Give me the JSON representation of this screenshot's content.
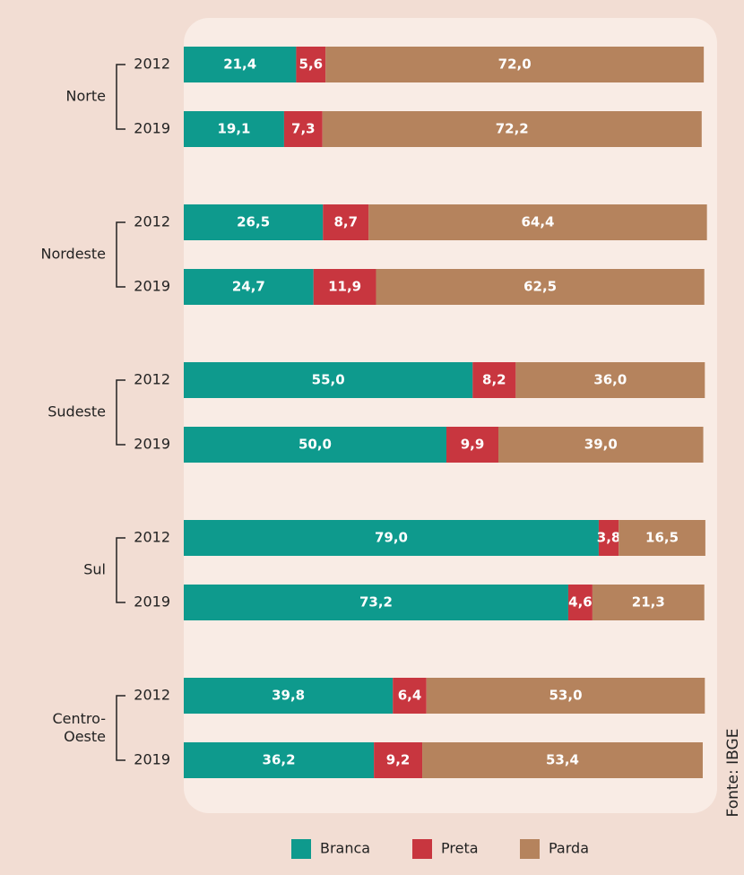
{
  "chart_data": {
    "type": "stacked-bar-horizontal",
    "groups": [
      "Norte",
      "Nordeste",
      "Sudeste",
      "Sul",
      "Centro-Oeste"
    ],
    "categories": [
      "2012",
      "2019",
      "2012",
      "2019",
      "2012",
      "2019",
      "2012",
      "2019",
      "2012",
      "2019"
    ],
    "xlim": [
      0,
      100
    ],
    "series": [
      {
        "name": "Branca",
        "color": "#0e9a8d",
        "values": [
          21.4,
          19.1,
          26.5,
          24.7,
          55.0,
          50.0,
          79.0,
          73.2,
          39.8,
          36.2
        ],
        "value_labels": [
          "21,4",
          "19,1",
          "26,5",
          "24,7",
          "55,0",
          "50,0",
          "79,0",
          "73,2",
          "39,8",
          "36,2"
        ]
      },
      {
        "name": "Preta",
        "color": "#c8363f",
        "values": [
          5.6,
          7.3,
          8.7,
          11.9,
          8.2,
          9.9,
          3.8,
          4.6,
          6.4,
          9.2
        ],
        "value_labels": [
          "5,6",
          "7,3",
          "8,7",
          "11,9",
          "8,2",
          "9,9",
          "3,8",
          "4,6",
          "6,4",
          "9,2"
        ]
      },
      {
        "name": "Parda",
        "color": "#b5835d",
        "values": [
          72.0,
          72.2,
          64.4,
          62.5,
          36.0,
          39.0,
          16.5,
          21.3,
          53.0,
          53.4
        ],
        "value_labels": [
          "72,0",
          "72,2",
          "64,4",
          "62,5",
          "36,0",
          "39,0",
          "16,5",
          "21,3",
          "53,0",
          "53,4"
        ]
      }
    ],
    "source": "Fonte: IBGE"
  }
}
